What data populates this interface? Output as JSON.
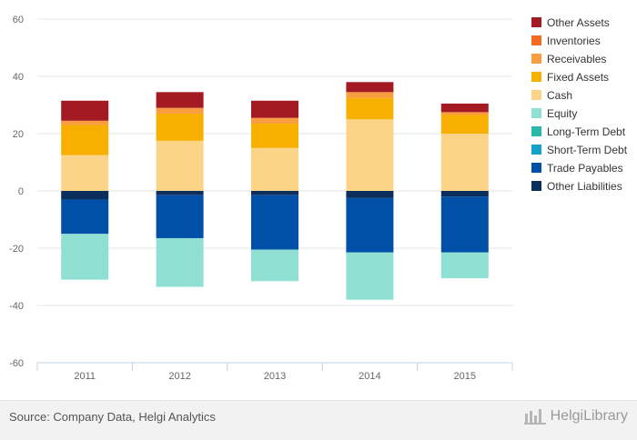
{
  "chart_data": {
    "type": "bar",
    "stacked": true,
    "categories": [
      "2011",
      "2012",
      "2013",
      "2014",
      "2015"
    ],
    "ylim": [
      -60,
      60
    ],
    "yticks": [
      -60,
      -40,
      -20,
      0,
      20,
      40,
      60
    ],
    "grid": true,
    "legend_position": "right",
    "series": [
      {
        "name": "Other Assets",
        "color": "#a31a22",
        "values": [
          7.0,
          5.5,
          6.0,
          3.5,
          3.0
        ]
      },
      {
        "name": "Inventories",
        "color": "#f26b21",
        "values": [
          0,
          0,
          0,
          0,
          0
        ]
      },
      {
        "name": "Receivables",
        "color": "#f89d40",
        "values": [
          1.5,
          2.0,
          2.0,
          2.0,
          1.0
        ]
      },
      {
        "name": "Fixed Assets",
        "color": "#f7b000",
        "values": [
          10.5,
          9.5,
          8.5,
          7.5,
          6.5
        ]
      },
      {
        "name": "Cash",
        "color": "#fcd488",
        "values": [
          12.5,
          17.5,
          15.0,
          25.0,
          20.0
        ]
      },
      {
        "name": "Equity",
        "color": "#8fdfd3",
        "values": [
          -16.0,
          -17.0,
          -11.0,
          -16.5,
          -9.0
        ]
      },
      {
        "name": "Long-Term Debt",
        "color": "#2bb8a8",
        "values": [
          0,
          0,
          0,
          0,
          0
        ]
      },
      {
        "name": "Short-Term Debt",
        "color": "#14a1c9",
        "values": [
          0,
          0,
          0,
          0,
          0
        ]
      },
      {
        "name": "Trade Payables",
        "color": "#0050a8",
        "values": [
          -12.0,
          -15.0,
          -19.0,
          -19.0,
          -19.5
        ]
      },
      {
        "name": "Other Liabilities",
        "color": "#0b2f5c",
        "values": [
          -3.0,
          -1.5,
          -1.5,
          -2.5,
          -2.0
        ]
      }
    ]
  },
  "footer": {
    "source": "Source: Company Data, Helgi Analytics",
    "brand": "HelgiLibrary"
  }
}
